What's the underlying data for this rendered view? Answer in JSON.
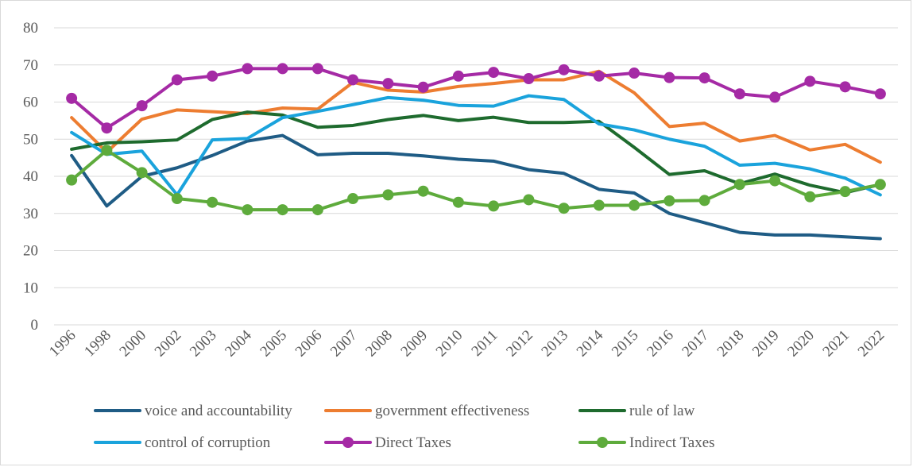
{
  "chart_data": {
    "type": "line",
    "title": "",
    "xlabel": "",
    "ylabel": "",
    "ylim": [
      0,
      80
    ],
    "yticks": [
      "0",
      "10",
      "20",
      "30",
      "40",
      "50",
      "60",
      "70",
      "80"
    ],
    "grid": "horizontal",
    "legend_position": "bottom",
    "categories": [
      "1996",
      "1998",
      "2000",
      "2002",
      "2003",
      "2004",
      "2005",
      "2006",
      "2007",
      "2008",
      "2009",
      "2010",
      "2011",
      "2012",
      "2013",
      "2014",
      "2015",
      "2016",
      "2017",
      "2018",
      "2019",
      "2020",
      "2021",
      "2022"
    ],
    "series": [
      {
        "name": "voice and accountability",
        "color": "#1f5c85",
        "marker": "none",
        "values": [
          45.6,
          32.0,
          40.0,
          42.3,
          45.6,
          49.5,
          51.0,
          45.8,
          46.2,
          46.2,
          45.5,
          44.6,
          44.1,
          41.8,
          40.8,
          36.5,
          35.5,
          30.0,
          27.5,
          24.9,
          24.2,
          24.2,
          23.7,
          23.2
        ]
      },
      {
        "name": "government effectiveness",
        "color": "#ed7d31",
        "marker": "none",
        "values": [
          55.8,
          46.5,
          55.4,
          57.9,
          57.4,
          56.9,
          58.4,
          58.1,
          65.3,
          63.2,
          62.7,
          64.2,
          65.0,
          66.0,
          66.0,
          68.3,
          62.5,
          53.4,
          54.3,
          49.5,
          51.0,
          47.1,
          48.6,
          43.8
        ]
      },
      {
        "name": "rule of law",
        "color": "#1e6b2e",
        "marker": "none",
        "values": [
          47.3,
          49.0,
          49.3,
          49.8,
          55.3,
          57.3,
          56.5,
          53.2,
          53.7,
          55.3,
          56.4,
          55.0,
          55.9,
          54.5,
          54.5,
          54.8,
          47.8,
          40.5,
          41.5,
          38.0,
          40.6,
          37.6,
          35.6,
          37.8
        ]
      },
      {
        "name": "control of corruption",
        "color": "#1aa3dc",
        "marker": "none",
        "values": [
          51.8,
          45.9,
          46.8,
          35.0,
          49.8,
          50.2,
          55.8,
          57.5,
          59.3,
          61.2,
          60.5,
          59.1,
          58.9,
          61.7,
          60.7,
          54.1,
          52.5,
          50.0,
          48.1,
          43.0,
          43.5,
          42.0,
          39.5,
          35.0
        ]
      },
      {
        "name": "Direct Taxes",
        "color": "#a52aa5",
        "marker": "circle",
        "values": [
          61.0,
          53.0,
          59.0,
          66.0,
          67.0,
          69.0,
          69.0,
          69.0,
          66.0,
          65.0,
          64.0,
          67.0,
          68.0,
          66.3,
          68.7,
          67.0,
          67.8,
          66.6,
          66.5,
          62.2,
          61.3,
          65.6,
          64.1,
          62.2
        ]
      },
      {
        "name": "Indirect Taxes",
        "color": "#5eab3c",
        "marker": "circle",
        "values": [
          39.0,
          47.0,
          41.0,
          34.0,
          33.0,
          31.0,
          31.0,
          31.0,
          34.0,
          35.0,
          36.0,
          33.0,
          32.0,
          33.7,
          31.4,
          32.2,
          32.2,
          33.4,
          33.5,
          37.8,
          38.8,
          34.5,
          35.9,
          37.8
        ]
      }
    ]
  }
}
